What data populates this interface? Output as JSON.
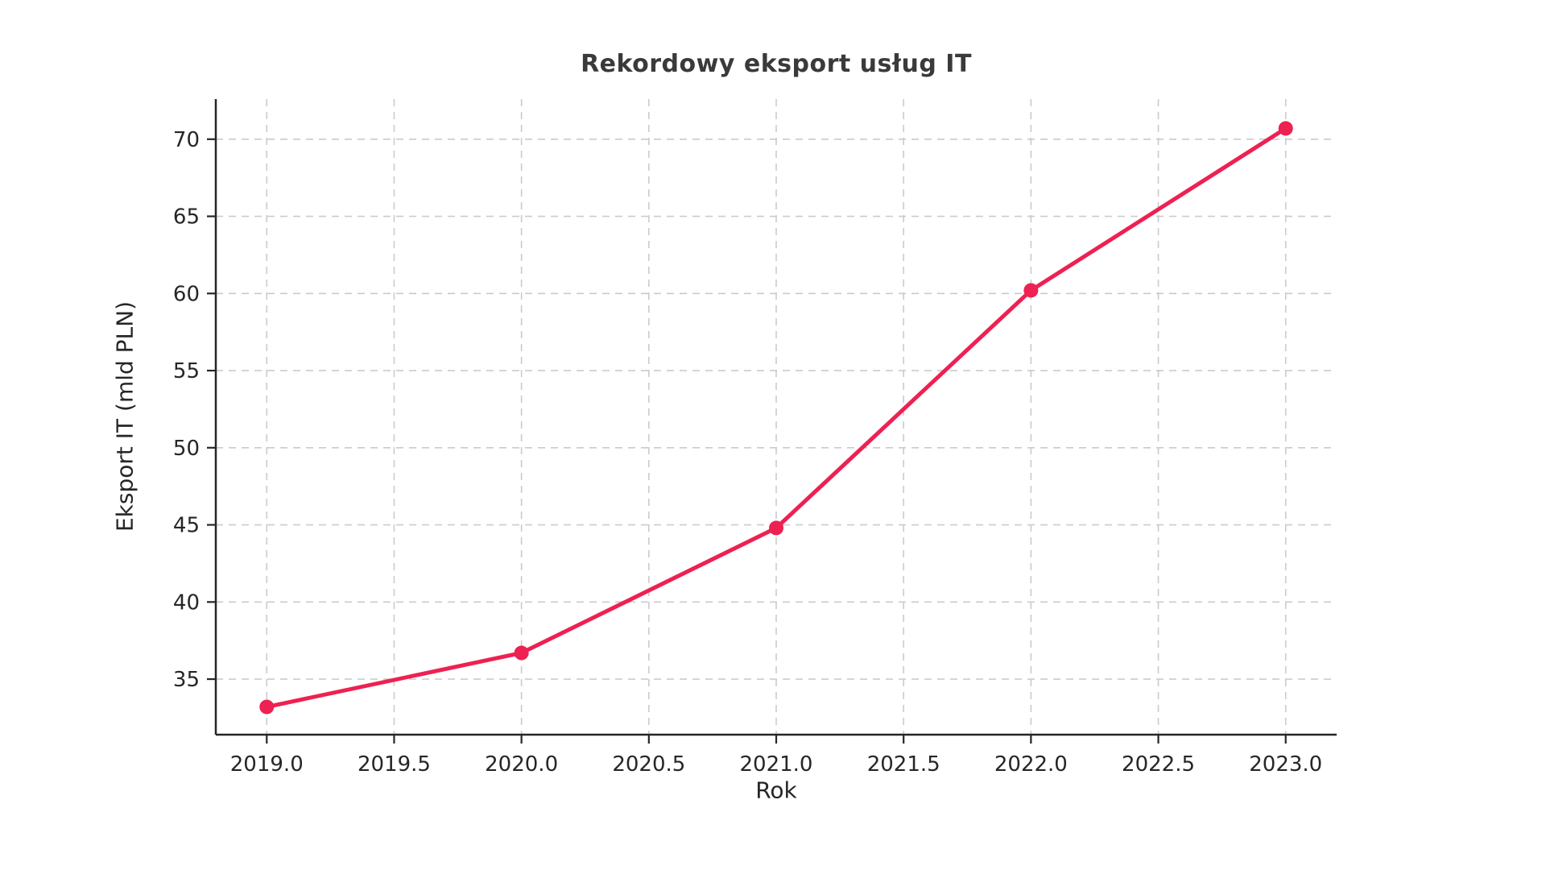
{
  "chart_data": {
    "type": "line",
    "title": "Rekordowy eksport usług IT",
    "xlabel": "Rok",
    "ylabel": "Eksport IT (mld PLN)",
    "series": [
      {
        "name": "Eksport IT (mld PLN)",
        "x": [
          2019,
          2020,
          2021,
          2022,
          2023
        ],
        "values": [
          33.2,
          36.7,
          44.8,
          60.2,
          70.7
        ]
      }
    ],
    "xlim": [
      2018.8,
      2023.2
    ],
    "ylim": [
      31.4,
      72.6
    ],
    "x_ticks": [
      2019.0,
      2019.5,
      2020.0,
      2020.5,
      2021.0,
      2021.5,
      2022.0,
      2022.5,
      2023.0
    ],
    "x_tick_labels": [
      "2019.0",
      "2019.5",
      "2020.0",
      "2020.5",
      "2021.0",
      "2021.5",
      "2022.0",
      "2022.5",
      "2023.0"
    ],
    "y_ticks": [
      35,
      40,
      45,
      50,
      55,
      60,
      65,
      70
    ],
    "y_tick_labels": [
      "35",
      "40",
      "45",
      "50",
      "55",
      "60",
      "65",
      "70"
    ],
    "grid": true,
    "grid_style": "dashed",
    "legend_position": "none",
    "line_color": "#ED2152",
    "marker": "circle",
    "grid_color": "#cbcbcb",
    "axis_color": "#262626",
    "text_color": "#262626",
    "title_color": "#3a3a3a",
    "background_color": "#ffffff"
  }
}
